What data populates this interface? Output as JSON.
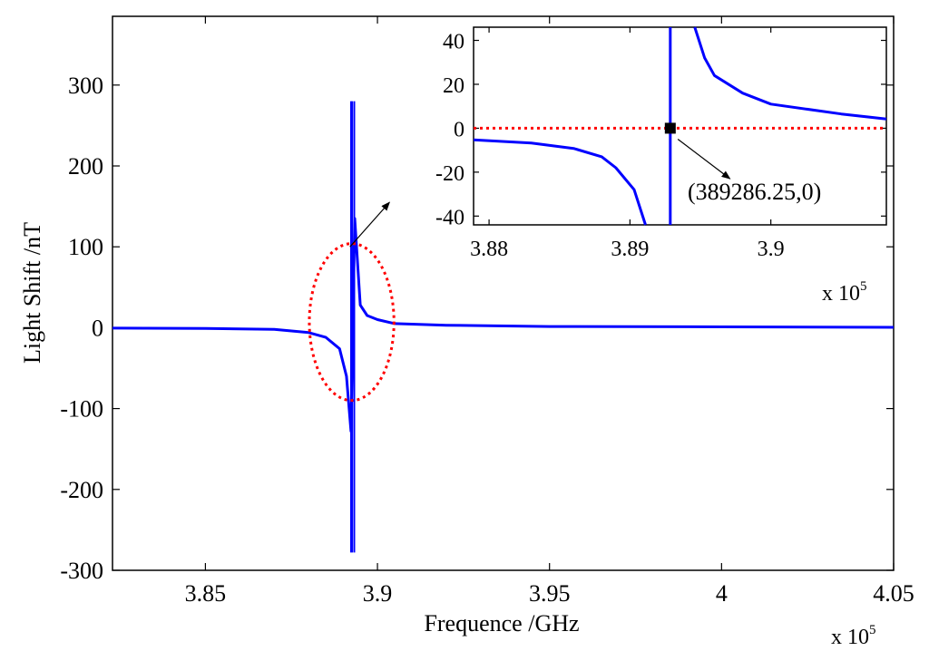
{
  "chart_data": [
    {
      "type": "line",
      "xlabel": "Frequence /GHz",
      "ylabel": "Light Shift /nT",
      "x_multiplier": {
        "base": "x 10",
        "exp": "5"
      },
      "xlim": [
        3.823,
        4.05
      ],
      "ylim": [
        -300,
        385
      ],
      "xticks": [
        3.85,
        3.9,
        3.95,
        4,
        4.05
      ],
      "xtick_labels": [
        "3.85",
        "3.9",
        "3.95",
        "4",
        "4.05"
      ],
      "yticks": [
        -300,
        -200,
        -100,
        0,
        100,
        200,
        300
      ],
      "ytick_labels": [
        "-300",
        "-200",
        "-100",
        "0",
        "100",
        "200",
        "300"
      ],
      "grid": false,
      "series": [
        {
          "color": "#0000ff",
          "resonance_x": 3.8928625,
          "peak_max": 280,
          "peak_min": -278,
          "x": [
            3.823,
            3.85,
            3.87,
            3.88,
            3.885,
            3.889,
            3.891,
            3.8923,
            3.8928625,
            3.8934,
            3.895,
            3.897,
            3.9,
            3.905,
            3.92,
            3.95,
            4.0,
            4.05
          ],
          "y": [
            -0.5,
            -1,
            -2,
            -6,
            -12,
            -26,
            -60,
            -128,
            0,
            135,
            28,
            15,
            10,
            5,
            3,
            1.5,
            1,
            0.5
          ]
        }
      ],
      "annotations": [
        {
          "type": "dotted-ellipse",
          "color": "#ff0000",
          "center_x": 3.8925,
          "center_y": 7,
          "rx": 0.0123,
          "ry": 97
        },
        {
          "type": "arrow",
          "from_x": 3.892,
          "from_y": 100,
          "to_x": 3.9035,
          "to_y": 155
        }
      ]
    },
    {
      "type": "line",
      "role": "inset",
      "x_multiplier": {
        "base": "x 10",
        "exp": "5"
      },
      "xlim": [
        3.8789,
        3.9082
      ],
      "ylim": [
        -44,
        46
      ],
      "xticks": [
        3.88,
        3.89,
        3.9
      ],
      "xtick_labels": [
        "3.88",
        "3.89",
        "3.9"
      ],
      "yticks": [
        -40,
        -20,
        0,
        20,
        40
      ],
      "ytick_labels": [
        "-40",
        "-20",
        "0",
        "20",
        "40"
      ],
      "grid": false,
      "resonance_x": 3.8928625,
      "series": [
        {
          "color": "#0000ff",
          "x": [
            3.8789,
            3.883,
            3.886,
            3.888,
            3.889,
            3.8903,
            3.8911
          ],
          "y": [
            -5.3,
            -6.7,
            -9.2,
            -13,
            -18,
            -28,
            -44
          ]
        },
        {
          "color": "#0000ff",
          "x": [
            3.8946,
            3.8953,
            3.896,
            3.898,
            3.9,
            3.905,
            3.9082
          ],
          "y": [
            46,
            32,
            24,
            16,
            11,
            6.5,
            4.2
          ]
        },
        {
          "color": "#ff0000",
          "x": [
            3.8789,
            3.9082
          ],
          "y": [
            0,
            0
          ]
        }
      ],
      "marker": {
        "x": 3.8928625,
        "y": 0,
        "label": "(389286.25,0)"
      },
      "arrow": {
        "from_x": 3.8934,
        "from_y": -5,
        "to_x": 3.8971,
        "to_y": -23
      }
    }
  ]
}
